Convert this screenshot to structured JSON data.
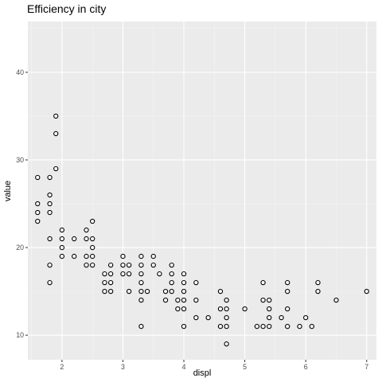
{
  "chart_data": {
    "type": "scatter",
    "title": "Efficiency in city",
    "xlabel": "displ",
    "ylabel": "value",
    "xlim": [
      1.44,
      7.16
    ],
    "ylim": [
      7.2,
      45.8
    ],
    "x_ticks": [
      2,
      3,
      4,
      5,
      6,
      7
    ],
    "y_ticks": [
      10,
      20,
      30,
      40
    ],
    "x_tick_labels": [
      "2",
      "3",
      "4",
      "5",
      "6",
      "7"
    ],
    "y_tick_labels": [
      "10",
      "20",
      "30",
      "40"
    ],
    "grid": true,
    "legend": "none",
    "colors": {
      "panel_background": "#ebebeb",
      "grid_major": "#ffffff",
      "grid_minor": "#f5f5f5",
      "point_fill": "#ffffff",
      "point_stroke": "#000000",
      "tick": "#333333"
    },
    "points": [
      {
        "x": 1.6,
        "y": 28
      },
      {
        "x": 1.6,
        "y": 25
      },
      {
        "x": 1.6,
        "y": 24
      },
      {
        "x": 1.6,
        "y": 23
      },
      {
        "x": 1.8,
        "y": 28
      },
      {
        "x": 1.8,
        "y": 26
      },
      {
        "x": 1.8,
        "y": 25
      },
      {
        "x": 1.8,
        "y": 24
      },
      {
        "x": 1.8,
        "y": 21
      },
      {
        "x": 1.8,
        "y": 18
      },
      {
        "x": 1.8,
        "y": 16
      },
      {
        "x": 1.9,
        "y": 35
      },
      {
        "x": 1.9,
        "y": 33
      },
      {
        "x": 1.9,
        "y": 29
      },
      {
        "x": 2.0,
        "y": 22
      },
      {
        "x": 2.0,
        "y": 21
      },
      {
        "x": 2.0,
        "y": 20
      },
      {
        "x": 2.0,
        "y": 19
      },
      {
        "x": 2.2,
        "y": 21
      },
      {
        "x": 2.2,
        "y": 19
      },
      {
        "x": 2.4,
        "y": 22
      },
      {
        "x": 2.4,
        "y": 21
      },
      {
        "x": 2.4,
        "y": 19
      },
      {
        "x": 2.4,
        "y": 18
      },
      {
        "x": 2.5,
        "y": 23
      },
      {
        "x": 2.5,
        "y": 21
      },
      {
        "x": 2.5,
        "y": 20
      },
      {
        "x": 2.5,
        "y": 19
      },
      {
        "x": 2.5,
        "y": 18
      },
      {
        "x": 2.7,
        "y": 17
      },
      {
        "x": 2.7,
        "y": 16
      },
      {
        "x": 2.7,
        "y": 15
      },
      {
        "x": 2.8,
        "y": 18
      },
      {
        "x": 2.8,
        "y": 17
      },
      {
        "x": 2.8,
        "y": 16
      },
      {
        "x": 2.8,
        "y": 15
      },
      {
        "x": 3.0,
        "y": 19
      },
      {
        "x": 3.0,
        "y": 18
      },
      {
        "x": 3.0,
        "y": 17
      },
      {
        "x": 3.1,
        "y": 18
      },
      {
        "x": 3.1,
        "y": 17
      },
      {
        "x": 3.1,
        "y": 15
      },
      {
        "x": 3.3,
        "y": 19
      },
      {
        "x": 3.3,
        "y": 18
      },
      {
        "x": 3.3,
        "y": 17
      },
      {
        "x": 3.3,
        "y": 16
      },
      {
        "x": 3.3,
        "y": 15
      },
      {
        "x": 3.3,
        "y": 14
      },
      {
        "x": 3.3,
        "y": 11
      },
      {
        "x": 3.4,
        "y": 15
      },
      {
        "x": 3.5,
        "y": 19
      },
      {
        "x": 3.5,
        "y": 18
      },
      {
        "x": 3.6,
        "y": 17
      },
      {
        "x": 3.7,
        "y": 15
      },
      {
        "x": 3.7,
        "y": 14
      },
      {
        "x": 3.8,
        "y": 18
      },
      {
        "x": 3.8,
        "y": 17
      },
      {
        "x": 3.8,
        "y": 16
      },
      {
        "x": 3.8,
        "y": 15
      },
      {
        "x": 3.9,
        "y": 14
      },
      {
        "x": 3.9,
        "y": 13
      },
      {
        "x": 4.0,
        "y": 17
      },
      {
        "x": 4.0,
        "y": 16
      },
      {
        "x": 4.0,
        "y": 15
      },
      {
        "x": 4.0,
        "y": 14
      },
      {
        "x": 4.0,
        "y": 13
      },
      {
        "x": 4.0,
        "y": 11
      },
      {
        "x": 4.2,
        "y": 16
      },
      {
        "x": 4.2,
        "y": 14
      },
      {
        "x": 4.2,
        "y": 12
      },
      {
        "x": 4.4,
        "y": 12
      },
      {
        "x": 4.6,
        "y": 15
      },
      {
        "x": 4.6,
        "y": 13
      },
      {
        "x": 4.6,
        "y": 11
      },
      {
        "x": 4.7,
        "y": 14
      },
      {
        "x": 4.7,
        "y": 13
      },
      {
        "x": 4.7,
        "y": 12
      },
      {
        "x": 4.7,
        "y": 11
      },
      {
        "x": 4.7,
        "y": 9
      },
      {
        "x": 5.0,
        "y": 13
      },
      {
        "x": 5.2,
        "y": 11
      },
      {
        "x": 5.3,
        "y": 16
      },
      {
        "x": 5.3,
        "y": 14
      },
      {
        "x": 5.3,
        "y": 11
      },
      {
        "x": 5.4,
        "y": 14
      },
      {
        "x": 5.4,
        "y": 13
      },
      {
        "x": 5.4,
        "y": 12
      },
      {
        "x": 5.4,
        "y": 11
      },
      {
        "x": 5.6,
        "y": 12
      },
      {
        "x": 5.7,
        "y": 16
      },
      {
        "x": 5.7,
        "y": 15
      },
      {
        "x": 5.7,
        "y": 13
      },
      {
        "x": 5.7,
        "y": 11
      },
      {
        "x": 5.9,
        "y": 11
      },
      {
        "x": 6.0,
        "y": 12
      },
      {
        "x": 6.1,
        "y": 11
      },
      {
        "x": 6.2,
        "y": 16
      },
      {
        "x": 6.2,
        "y": 15
      },
      {
        "x": 6.5,
        "y": 14
      },
      {
        "x": 7.0,
        "y": 15
      }
    ]
  }
}
